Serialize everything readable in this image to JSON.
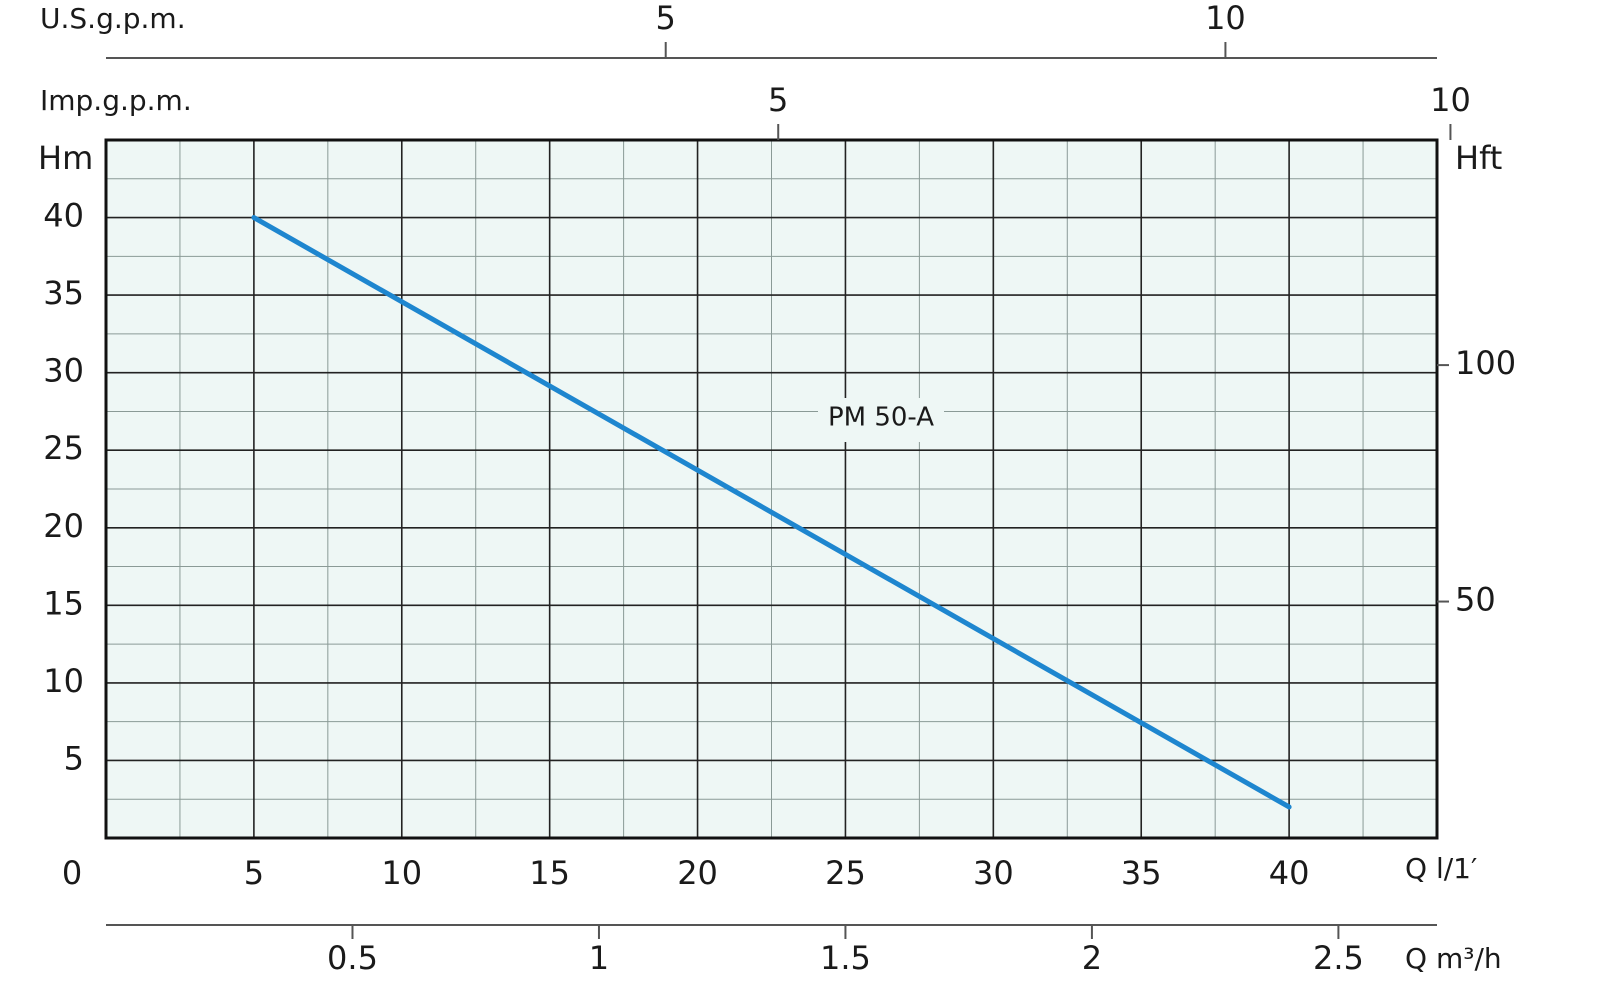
{
  "chart_data": {
    "type": "line",
    "x_label": "Q l/1′",
    "y_label": "Hm",
    "xlim": [
      0,
      45
    ],
    "ylim": [
      0,
      45
    ],
    "xticks": [
      0,
      5,
      10,
      15,
      20,
      25,
      30,
      35,
      40
    ],
    "yticks": [
      5,
      10,
      15,
      20,
      25,
      30,
      35,
      40
    ],
    "grid": true,
    "minor_grid": true,
    "background": "#eef7f5",
    "x": [
      5,
      40
    ],
    "series": [
      {
        "name": "PM 50-A",
        "color": "#1e86cf",
        "values": [
          40,
          2
        ]
      }
    ],
    "secondary_axes": [
      {
        "position": "top",
        "label": "U.S.g.p.m.",
        "lim": [
          0,
          11.89
        ],
        "ticks": [
          5,
          10
        ]
      },
      {
        "position": "top",
        "label": "Imp.g.p.m.",
        "lim": [
          0,
          9.9
        ],
        "ticks": [
          5,
          10
        ]
      },
      {
        "position": "bottom",
        "label": "Q m³/h",
        "lim": [
          0,
          2.7
        ],
        "ticks": [
          0.5,
          1,
          1.5,
          2,
          2.5
        ]
      },
      {
        "position": "right",
        "label": "Hft",
        "lim": [
          0,
          147.6
        ],
        "ticks": [
          50,
          100
        ]
      }
    ]
  }
}
